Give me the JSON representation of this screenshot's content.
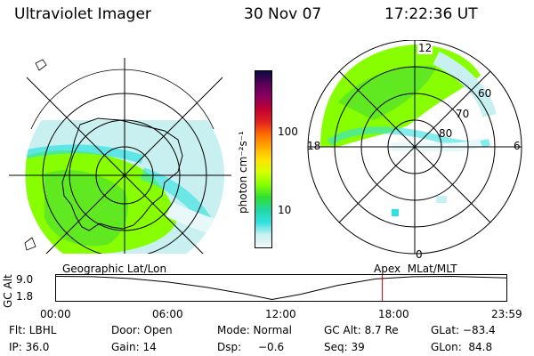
{
  "header": {
    "instrument": "Ultraviolet Imager",
    "date": "30 Nov 07",
    "time": "17:22:36 UT"
  },
  "colorbar": {
    "unit_label": "photon cm⁻²s⁻¹",
    "ticks": [
      "100",
      "10"
    ],
    "colors": [
      "#0a0a40",
      "#5a005a",
      "#8a0060",
      "#c00030",
      "#e02020",
      "#ff6a00",
      "#ffaa00",
      "#ffe000",
      "#d8ff00",
      "#88ff00",
      "#30e030",
      "#20d8a0",
      "#30e0e0",
      "#c8f0f0",
      "#f0f8f8"
    ]
  },
  "left_map": {
    "label": "Geographic Lat/Lon"
  },
  "right_map": {
    "label": "Apex  MLat/MLT",
    "mlt_labels": [
      "12",
      "18",
      "6",
      "0"
    ],
    "lat_labels": [
      "60",
      "70",
      "80"
    ]
  },
  "altitude_strip": {
    "axis_label": "GC Alt",
    "y_ticks": [
      "9.0",
      "1.8"
    ],
    "x_ticks": [
      "00:00",
      "06:00",
      "12:00",
      "18:00",
      "23:59"
    ],
    "series": [
      {
        "t": "00:00",
        "alt": 9.0
      },
      {
        "t": "02:00",
        "alt": 8.9
      },
      {
        "t": "04:00",
        "alt": 8.3
      },
      {
        "t": "06:00",
        "alt": 7.2
      },
      {
        "t": "08:00",
        "alt": 5.6
      },
      {
        "t": "10:00",
        "alt": 3.6
      },
      {
        "t": "11:30",
        "alt": 1.8
      },
      {
        "t": "13:00",
        "alt": 3.4
      },
      {
        "t": "15:00",
        "alt": 6.2
      },
      {
        "t": "17:00",
        "alt": 8.2
      },
      {
        "t": "19:00",
        "alt": 8.9
      },
      {
        "t": "21:00",
        "alt": 9.0
      },
      {
        "t": "23:59",
        "alt": 8.5
      }
    ],
    "marker_time": "17:22",
    "marker_color": "#c00000"
  },
  "info": {
    "filter": "Flt: LBHL",
    "door": "Door: Open",
    "mode": "Mode: Normal",
    "gc_alt": "GC Alt: 8.7 Re",
    "glat": "GLat: −83.4",
    "ip": "IP: 36.0",
    "gain": "Gain: 14",
    "dsp_label": "Dsp:",
    "dsp_value": "−0.6",
    "seq": "Seq: 39",
    "glon": "GLon:  84.8"
  }
}
